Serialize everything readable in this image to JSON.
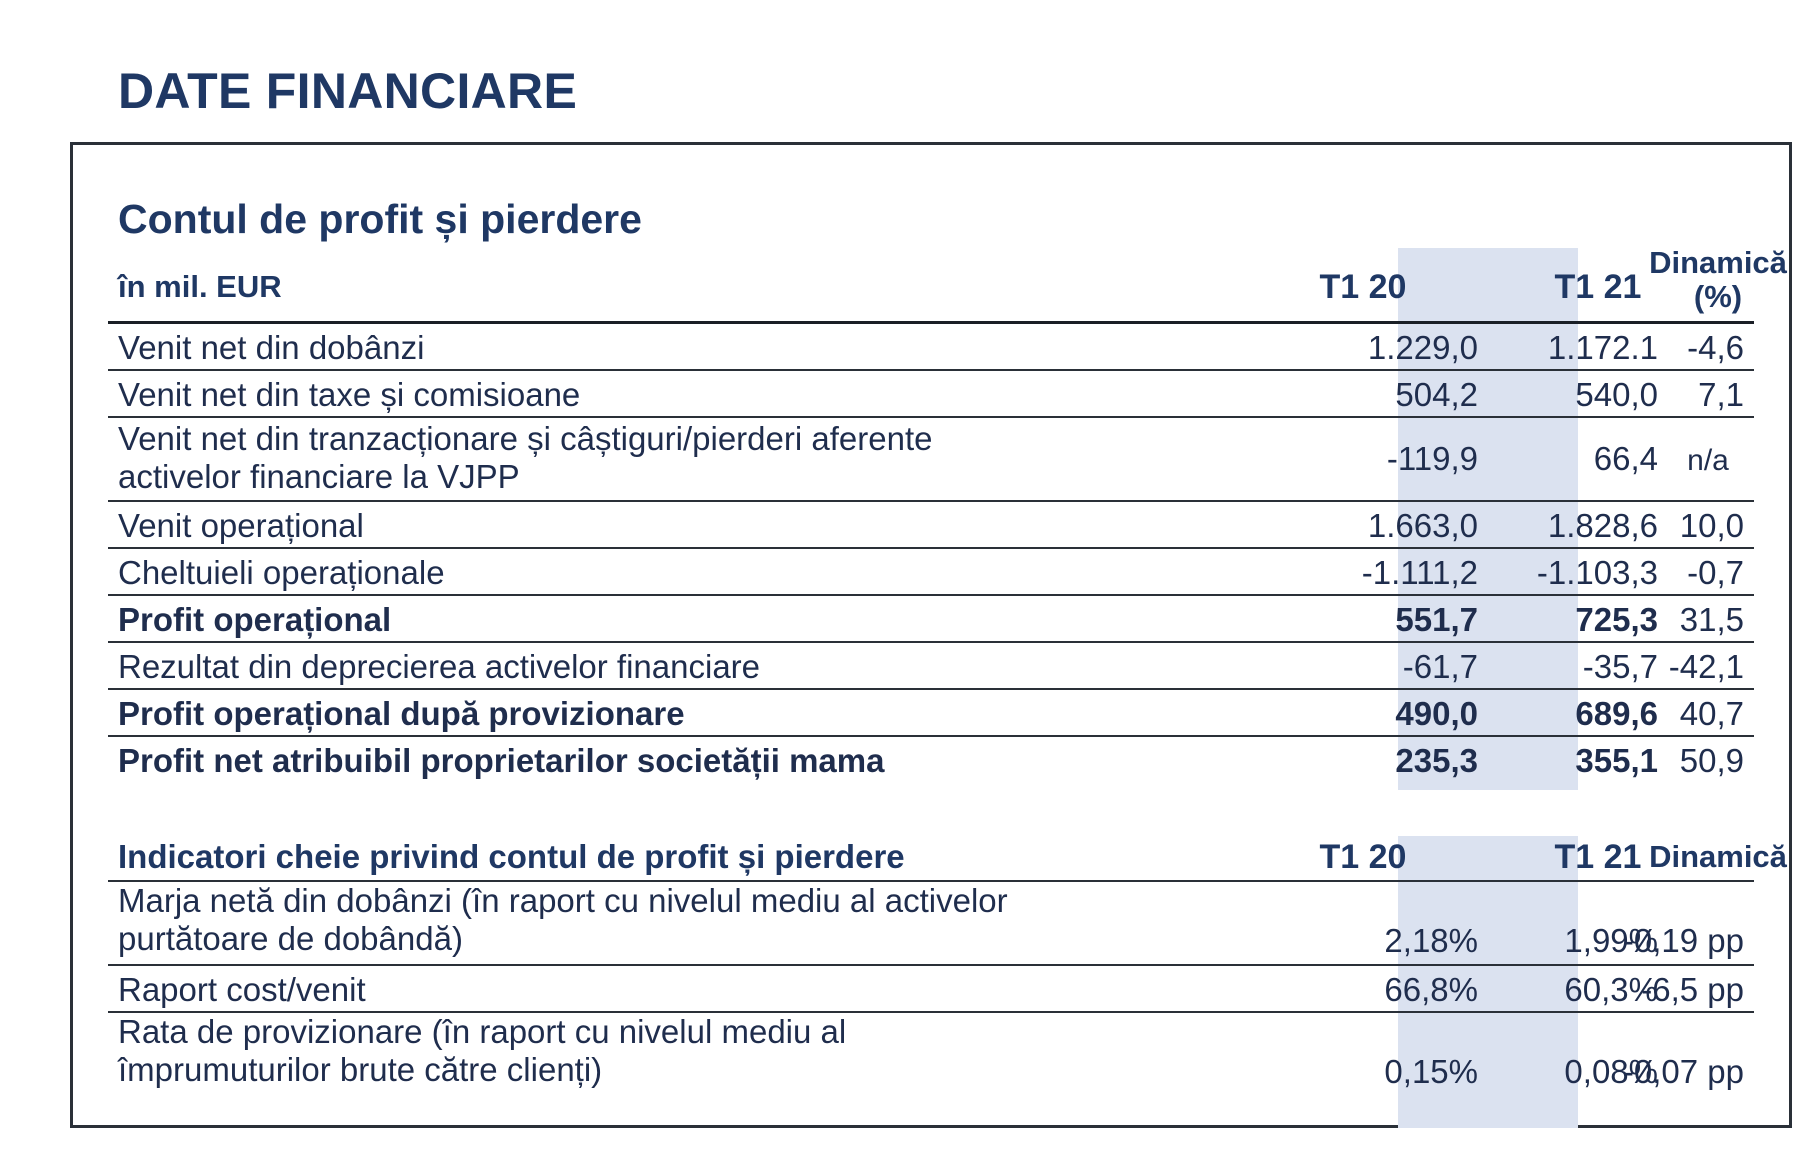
{
  "page_title": "DATE FINANCIARE",
  "section1": {
    "title": "Contul de profit și pierdere",
    "unit_label": "în mil. EUR",
    "col1": "T1 20",
    "col2": "T1 21",
    "col3_line1": "Dinamică",
    "col3_line2": "(%)",
    "rows": [
      {
        "label": "Venit net din dobânzi",
        "v1": "1.229,0",
        "v2": "1.172.1",
        "v3": "-4,6"
      },
      {
        "label": "Venit net din taxe și comisioane",
        "v1": "504,2",
        "v2": "540,0",
        "v3": "7,1"
      },
      {
        "label_line1": "Venit net din tranzacționare și câștiguri/pierderi aferente",
        "label_line2": "activelor financiare la VJPP",
        "v1": "-119,9",
        "v2": "66,4",
        "v3": "n/a"
      },
      {
        "label": "Venit operațional",
        "v1": "1.663,0",
        "v2": "1.828,6",
        "v3": "10,0"
      },
      {
        "label": "Cheltuieli operaționale",
        "v1": "-1.111,2",
        "v2": "-1.103,3",
        "v3": "-0,7"
      },
      {
        "label": "Profit operațional",
        "v1": "551,7",
        "v2": "725,3",
        "v3": "31,5"
      },
      {
        "label": "Rezultat din deprecierea activelor financiare",
        "v1": "-61,7",
        "v2": "-35,7",
        "v3": "-42,1"
      },
      {
        "label": "Profit operațional după provizionare",
        "v1": "490,0",
        "v2": "689,6",
        "v3": "40,7"
      },
      {
        "label": "Profit net atribuibil proprietarilor societății mama",
        "v1": "235,3",
        "v2": "355,1",
        "v3": "50,9"
      }
    ]
  },
  "section2": {
    "title": "Indicatori cheie privind contul de profit și pierdere",
    "col1": "T1 20",
    "col2": "T1 21",
    "col3": "Dinamică",
    "rows": [
      {
        "label_line1": "Marja netă din dobânzi (în raport cu nivelul mediu al activelor",
        "label_line2": "purtătoare de dobândă)",
        "v1": "2,18%",
        "v2": "1,99%",
        "v3": "-0,19 pp"
      },
      {
        "label": "Raport cost/venit",
        "v1": "66,8%",
        "v2": "60,3%",
        "v3": "-6,5 pp"
      },
      {
        "label_line1": "Rata de provizionare (în raport cu nivelul mediu al",
        "label_line2": "împrumuturilor brute către clienți)",
        "v1": "0,15%",
        "v2": "0,08%",
        "v3": "-0,07 pp"
      }
    ]
  },
  "colors": {
    "title": "#1f3864",
    "highlight_column": "#dbe2f0",
    "rule": "#2a3038"
  }
}
